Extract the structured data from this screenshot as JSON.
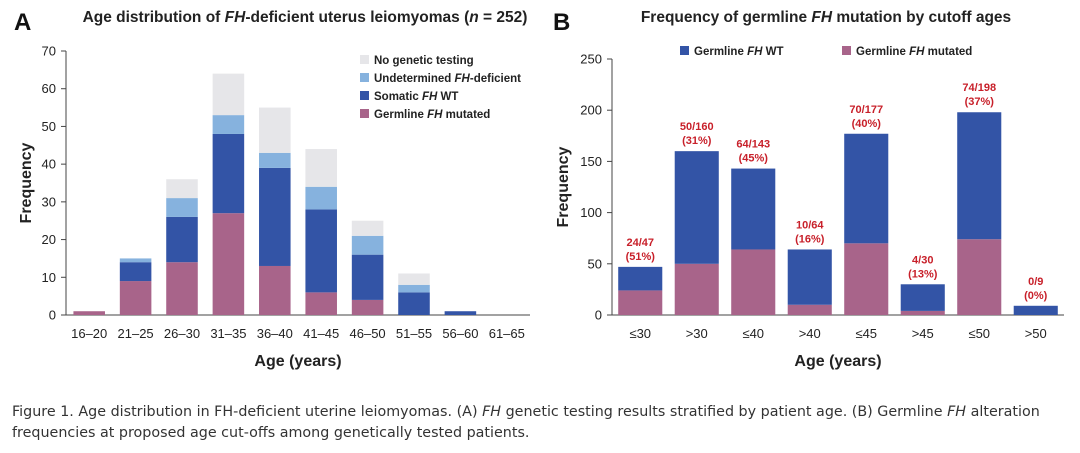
{
  "figure": {
    "caption": {
      "label": "Figure 1.",
      "parts": [
        {
          "t": " Age distribution in FH-deficient uterine leiomyomas. (A) ",
          "i": false
        },
        {
          "t": "FH",
          "i": true
        },
        {
          "t": " genetic testing results stratified by patient age. (B) Germline ",
          "i": false
        },
        {
          "t": "FH",
          "i": true
        },
        {
          "t": " alteration frequencies at proposed age cut-offs among genetically tested patients.",
          "i": false
        }
      ]
    }
  },
  "chart_data": [
    {
      "panel": "A",
      "type": "bar",
      "stacked": true,
      "title_parts": [
        {
          "t": "Age distribution of ",
          "i": false
        },
        {
          "t": "FH",
          "i": true
        },
        {
          "t": "-deficient uterus leiomyomas (",
          "i": false
        },
        {
          "t": "n",
          "i": true
        },
        {
          "t": " = 252)",
          "i": false
        }
      ],
      "xlabel": "Age (years)",
      "ylabel": "Frequency",
      "ylim": [
        0,
        70
      ],
      "yticks": [
        0,
        10,
        20,
        30,
        40,
        50,
        60,
        70
      ],
      "categories": [
        "16–20",
        "21–25",
        "26–30",
        "31–35",
        "36–40",
        "41–45",
        "46–50",
        "51–55",
        "56–60",
        "61–65"
      ],
      "series": [
        {
          "name_parts": [
            {
              "t": "Germline ",
              "i": false
            },
            {
              "t": "FH",
              "i": true
            },
            {
              "t": " mutated",
              "i": false
            }
          ],
          "color": "#a8648a",
          "values": [
            1,
            9,
            14,
            27,
            13,
            6,
            4,
            0,
            0,
            0
          ]
        },
        {
          "name_parts": [
            {
              "t": "Somatic ",
              "i": false
            },
            {
              "t": "FH",
              "i": true
            },
            {
              "t": " WT",
              "i": false
            }
          ],
          "color": "#3354a6",
          "values": [
            0,
            5,
            12,
            21,
            26,
            22,
            12,
            6,
            1,
            0
          ]
        },
        {
          "name_parts": [
            {
              "t": "Undetermined ",
              "i": false
            },
            {
              "t": "FH",
              "i": true
            },
            {
              "t": "-deficient",
              "i": false
            }
          ],
          "color": "#86b2de",
          "values": [
            0,
            1,
            5,
            5,
            4,
            6,
            5,
            2,
            0,
            0
          ]
        },
        {
          "name_parts": [
            {
              "t": "No genetic testing",
              "i": false
            }
          ],
          "color": "#e6e6e9",
          "values": [
            0,
            0,
            5,
            11,
            12,
            10,
            4,
            3,
            0,
            0
          ]
        }
      ],
      "legend_order": [
        3,
        2,
        1,
        0
      ],
      "legend_position": "top-right",
      "grid": false
    },
    {
      "panel": "B",
      "type": "bar",
      "stacked": true,
      "title_parts": [
        {
          "t": "Frequency of germline ",
          "i": false
        },
        {
          "t": "FH",
          "i": true
        },
        {
          "t": " mutation by cutoff ages",
          "i": false
        }
      ],
      "xlabel": "Age (years)",
      "ylabel": "Frequency",
      "ylim": [
        0,
        250
      ],
      "yticks": [
        0,
        50,
        100,
        150,
        200,
        250
      ],
      "categories": [
        "≤30",
        ">30",
        "≤40",
        ">40",
        "≤45",
        ">45",
        "≤50",
        ">50"
      ],
      "series": [
        {
          "name_parts": [
            {
              "t": "Germline ",
              "i": false
            },
            {
              "t": "FH",
              "i": true
            },
            {
              "t": " mutated",
              "i": false
            }
          ],
          "color": "#a8648a",
          "values": [
            24,
            50,
            64,
            10,
            70,
            4,
            74,
            0
          ]
        },
        {
          "name_parts": [
            {
              "t": "Germline ",
              "i": false
            },
            {
              "t": "FH",
              "i": true
            },
            {
              "t": " WT",
              "i": false
            }
          ],
          "color": "#3354a6",
          "values": [
            23,
            110,
            79,
            54,
            107,
            26,
            124,
            9
          ]
        }
      ],
      "legend_order": [
        1,
        0
      ],
      "legend_position": "top",
      "annotations": [
        [
          "24/47",
          "(51%)"
        ],
        [
          "50/160",
          "(31%)"
        ],
        [
          "64/143",
          "(45%)"
        ],
        [
          "10/64",
          "(16%)"
        ],
        [
          "70/177",
          "(40%)"
        ],
        [
          "4/30",
          "(13%)"
        ],
        [
          "74/198",
          "(37%)"
        ],
        [
          "0/9",
          "(0%)"
        ]
      ],
      "annotation_color": "#c8202a",
      "grid": false
    }
  ]
}
